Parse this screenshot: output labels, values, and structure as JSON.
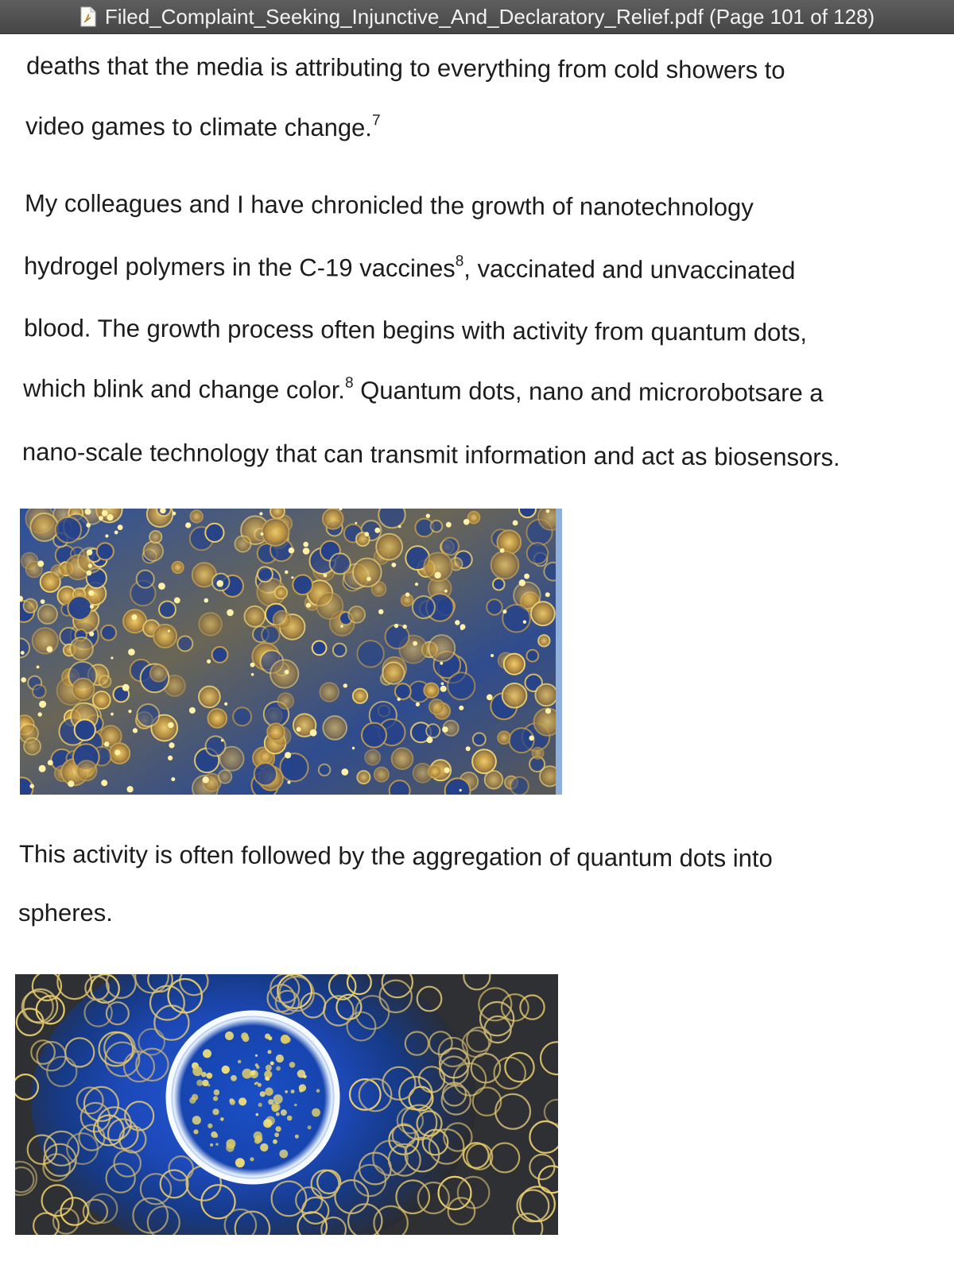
{
  "window": {
    "title": "Filed_Complaint_Seeking_Injunctive_And_Declaratory_Relief.pdf (Page 101 of 128)"
  },
  "document": {
    "p1": {
      "line1": "deaths that the media is attributing to everything from cold showers to",
      "line2": "video games to climate change.",
      "line2_note": "7"
    },
    "p2": {
      "line1": "My colleagues and I have chronicled the growth of nanotechnology",
      "line2a": "hydrogel polymers in the C-19 vaccines",
      "line2_note": "8",
      "line2b": ", vaccinated and unvaccinated",
      "line3": "blood. The growth process often begins with activity from quantum dots,",
      "line4a": "which blink and change color.",
      "line4_note": "8",
      "line4b": " Quantum dots, nano and microrobotsare a",
      "line5": "nano-scale technology that can transmit information and act as biosensors."
    },
    "p3": {
      "line1": "This activity is often followed by the aggregation of quantum dots into",
      "line2": "spheres."
    }
  },
  "figures": {
    "figure1_icon": "microscopy-photo-blood-cells",
    "figure2_icon": "microscopy-photo-sphere-aggregate"
  },
  "colors": {
    "titlebar": "#4f4f4f",
    "titlebar_text": "#f2f2f2",
    "body_text": "#1c1c1c",
    "photo_blue": "#1d3f8f",
    "photo_gold": "#e6b84a"
  }
}
